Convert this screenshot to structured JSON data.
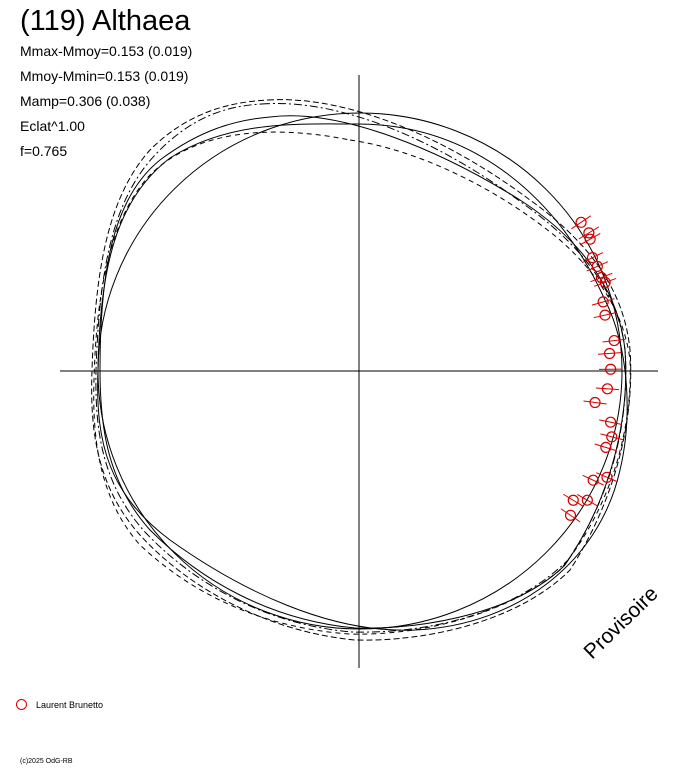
{
  "title": "(119) Althaea",
  "stats": [
    "Mmax-Mmoy=0.153 (0.019)",
    "Mmoy-Mmin=0.153 (0.019)",
    "Mamp=0.306 (0.038)",
    "Eclat^1.00",
    "f=0.765"
  ],
  "watermark": "Provisoire",
  "legend": {
    "label": "Laurent Brunetto",
    "color": "#d40000"
  },
  "copyright": "(c)2025 OdG-RB",
  "chart_data": {
    "type": "scatter",
    "coordinate_system": "polar",
    "angle_unit": "degrees",
    "series": [
      {
        "name": "Laurent Brunetto",
        "color": "#d40000",
        "points": [
          {
            "angle": 33.8,
            "r": 1.147,
            "err": 0.05
          },
          {
            "angle": 31.0,
            "r": 1.151,
            "err": 0.05
          },
          {
            "angle": 29.7,
            "r": 1.142,
            "err": 0.05
          },
          {
            "angle": 25.9,
            "r": 1.114,
            "err": 0.05
          },
          {
            "angle": 23.7,
            "r": 1.117,
            "err": 0.05
          },
          {
            "angle": 21.1,
            "r": 1.115,
            "err": 0.05
          },
          {
            "angle": 19.8,
            "r": 1.123,
            "err": 0.05
          },
          {
            "angle": 15.8,
            "r": 1.089,
            "err": 0.05
          },
          {
            "angle": 12.8,
            "r": 1.083,
            "err": 0.05
          },
          {
            "angle": 6.8,
            "r": 1.103,
            "err": 0.05
          },
          {
            "angle": 4.0,
            "r": 1.078,
            "err": 0.05
          },
          {
            "angle": 0.4,
            "r": 1.08,
            "err": 0.05
          },
          {
            "angle": -4.1,
            "r": 1.069,
            "err": 0.05
          },
          {
            "angle": -7.6,
            "r": 1.022,
            "err": 0.05
          },
          {
            "angle": -11.5,
            "r": 1.102,
            "err": 0.05
          },
          {
            "angle": -14.6,
            "r": 1.121,
            "err": 0.05
          },
          {
            "angle": -17.2,
            "r": 1.109,
            "err": 0.05
          },
          {
            "angle": -23.2,
            "r": 1.158,
            "err": 0.05
          },
          {
            "angle": -25.0,
            "r": 1.109,
            "err": 0.05
          },
          {
            "angle": -29.5,
            "r": 1.126,
            "err": 0.05
          },
          {
            "angle": -31.1,
            "r": 1.074,
            "err": 0.05
          },
          {
            "angle": -34.3,
            "r": 1.099,
            "err": 0.05
          }
        ]
      }
    ]
  }
}
